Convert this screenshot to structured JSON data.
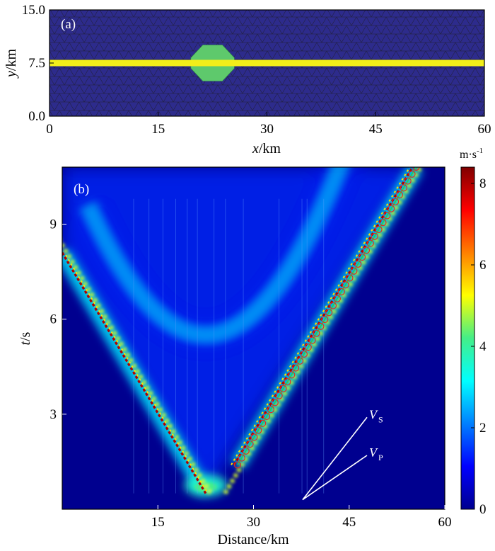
{
  "chart_data": [
    {
      "panel": "a",
      "type": "mesh",
      "label": "(a)",
      "xlabel_italic": "x",
      "xlabel_unit": "/km",
      "ylabel_italic": "y",
      "ylabel_unit": "/km",
      "xlim": [
        0,
        60
      ],
      "ylim": [
        0,
        15
      ],
      "xticks": [
        0,
        15,
        30,
        45,
        60
      ],
      "yticks": [
        0,
        7.5,
        15
      ],
      "ytick_labels": [
        "0.0",
        "7.5",
        "15.0"
      ],
      "fault_y": 7.5,
      "fault_halfwidth_km": 0.45,
      "nucleation_center": [
        22.5,
        7.5
      ],
      "nucleation_halfwidth_km": 3.0,
      "colors": {
        "background": "#2d2b8c",
        "mesh_line": "#1a1a1a",
        "fault": "#f2ee1a",
        "nucleation": "#5ec96c"
      }
    },
    {
      "panel": "b",
      "type": "heatmap",
      "label": "(b)",
      "xlabel": "Distance/km",
      "ylabel_italic": "t",
      "ylabel_unit": "/s",
      "xlim": [
        0,
        60
      ],
      "ylim": [
        0,
        10.8
      ],
      "xticks": [
        15,
        30,
        45,
        60
      ],
      "yticks": [
        3,
        6,
        9
      ],
      "colorbar": {
        "unit": "m·s",
        "unit_exp": "-1",
        "min": 0,
        "max": 8.4,
        "ticks": [
          0,
          2,
          4,
          6,
          8
        ]
      },
      "rupture_hypocenter_km": 22.5,
      "rupture_start_time_s": 0.5,
      "left_front": {
        "from": [
          0,
          8.1
        ],
        "to": [
          22.5,
          0.5
        ],
        "peak_value": 8
      },
      "right_front": {
        "from": [
          27.5,
          1.4
        ],
        "to": [
          55.5,
          10.8
        ],
        "peak_value": 8
      },
      "inner_wave": {
        "min_time_s": 5.5,
        "value": 3
      },
      "annotation_lines": [
        {
          "label": "V",
          "subscript": "S",
          "from": [
            37.7,
            0.3
          ],
          "to": [
            47.8,
            2.9
          ]
        },
        {
          "label": "V",
          "subscript": "P",
          "from": [
            37.7,
            0.3
          ],
          "to": [
            47.8,
            1.7
          ]
        }
      ],
      "circle_markers": {
        "count": 44,
        "color": "#e8261c",
        "line_color": "#33cc44"
      }
    }
  ]
}
